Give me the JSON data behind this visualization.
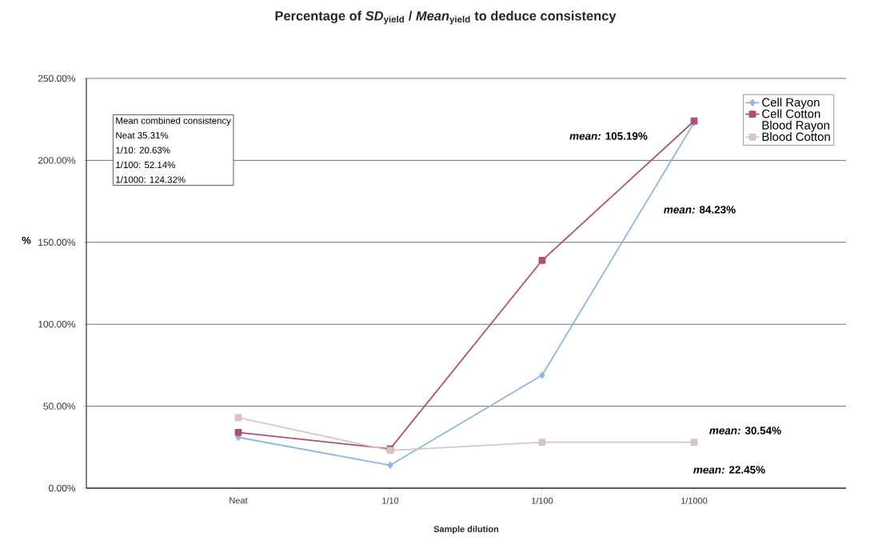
{
  "chart_data": {
    "type": "line",
    "title": "Percentage of *SD*$_{yield}$ / *Mean*$_{yield}$ to deduce consistency",
    "xlabel": "Sample dilution",
    "ylabel": "%",
    "categories": [
      "Neat",
      "1/10",
      "1/100",
      "1/1000"
    ],
    "series": [
      {
        "name": "Cell Rayon",
        "color": "#8eb6e8",
        "marker": "diamond",
        "values": [
          31,
          14,
          69,
          223
        ]
      },
      {
        "name": "Cell Cotton",
        "color": "#b0506e",
        "marker": "square",
        "values": [
          34,
          24,
          139,
          224
        ]
      },
      {
        "name": "Blood Rayon",
        "values": [
          null,
          null,
          null,
          null
        ]
      },
      {
        "name": "Blood Cotton",
        "color": "#d9c3c8",
        "marker": "square",
        "values": [
          43,
          23,
          28,
          28
        ]
      }
    ],
    "ylim": [
      0,
      250
    ],
    "yticks": [
      {
        "value": 0,
        "label": "0.00%"
      },
      {
        "value": 50,
        "label": "50.00%"
      },
      {
        "value": 100,
        "label": "100.00%"
      },
      {
        "value": 150,
        "label": "150.00%"
      },
      {
        "value": 200,
        "label": "200.00%"
      },
      {
        "value": 250,
        "label": "250.00%"
      }
    ],
    "grid": "y",
    "legend": "top right",
    "annotations": [
      "Mean combined consistency",
      "Neat  35.31%",
      "1/10: 20.63%",
      "1/100: 52.14%",
      "1/1000: 124.32%",
      "*mean:* 105.19%",
      "*mean:* 84.23%",
      "*mean:* 30.54%",
      "*mean:* 22.45%"
    ]
  }
}
